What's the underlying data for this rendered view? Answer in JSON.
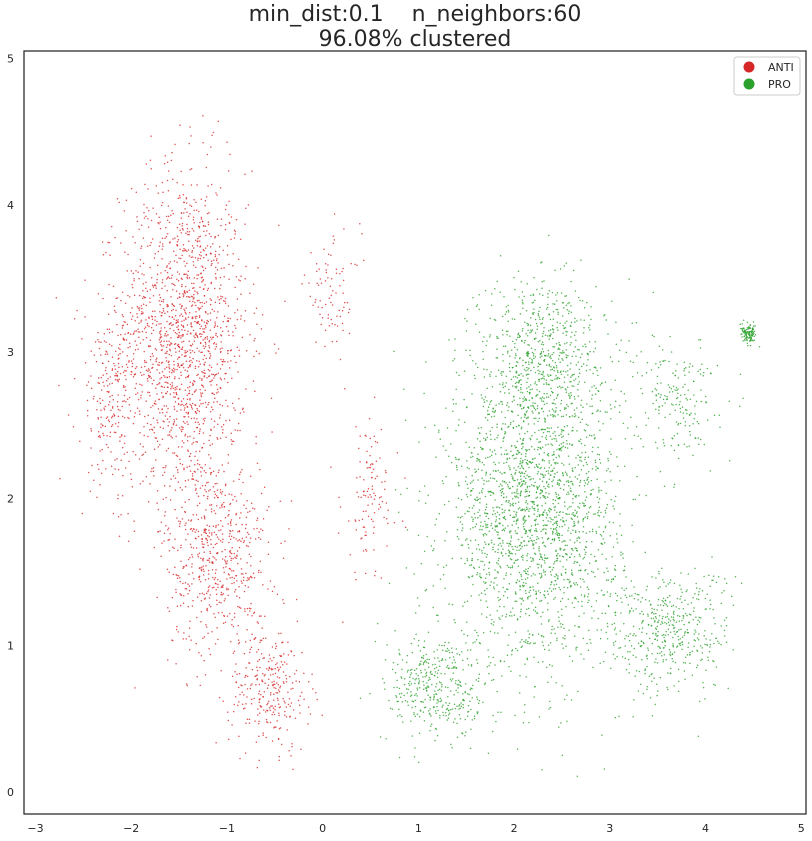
{
  "chart_data": {
    "type": "scatter",
    "title_line1": "min_dist:0.1    n_neighbors:60",
    "title_line2": "96.08% clustered",
    "xlabel": "",
    "ylabel": "",
    "xlim": [
      -3.12,
      5.05
    ],
    "ylim": [
      -0.15,
      5.05
    ],
    "x_ticks": [
      -3,
      -2,
      -1,
      0,
      1,
      2,
      3,
      4,
      5
    ],
    "y_ticks": [
      0,
      1,
      2,
      3,
      4,
      5
    ],
    "grid": false,
    "legend_position": "top-right",
    "series": [
      {
        "name": "ANTI",
        "color": "#d62728",
        "approx_points": 2800,
        "regions": [
          {
            "center": [
              -1.45,
              3.1
            ],
            "spread": [
              0.55,
              0.95
            ],
            "weight": 0.55
          },
          {
            "center": [
              -1.1,
              1.6
            ],
            "spread": [
              0.45,
              0.55
            ],
            "weight": 0.2
          },
          {
            "center": [
              -0.55,
              0.7
            ],
            "spread": [
              0.35,
              0.35
            ],
            "weight": 0.1
          },
          {
            "center": [
              -2.2,
              2.7
            ],
            "spread": [
              0.3,
              0.55
            ],
            "weight": 0.08
          },
          {
            "center": [
              0.5,
              2.0
            ],
            "spread": [
              0.25,
              0.45
            ],
            "weight": 0.04
          },
          {
            "center": [
              0.1,
              3.4
            ],
            "spread": [
              0.25,
              0.35
            ],
            "weight": 0.03
          }
        ]
      },
      {
        "name": "PRO",
        "color": "#2ca02c",
        "approx_points": 3800,
        "regions": [
          {
            "center": [
              2.2,
              1.9
            ],
            "spread": [
              0.75,
              0.85
            ],
            "weight": 0.55
          },
          {
            "center": [
              2.3,
              3.0
            ],
            "spread": [
              0.55,
              0.45
            ],
            "weight": 0.15
          },
          {
            "center": [
              3.6,
              1.1
            ],
            "spread": [
              0.55,
              0.35
            ],
            "weight": 0.12
          },
          {
            "center": [
              1.2,
              0.7
            ],
            "spread": [
              0.45,
              0.3
            ],
            "weight": 0.1
          },
          {
            "center": [
              3.7,
              2.7
            ],
            "spread": [
              0.35,
              0.35
            ],
            "weight": 0.05
          },
          {
            "center": [
              4.45,
              3.12
            ],
            "spread": [
              0.07,
              0.05
            ],
            "weight": 0.03
          }
        ]
      }
    ]
  }
}
